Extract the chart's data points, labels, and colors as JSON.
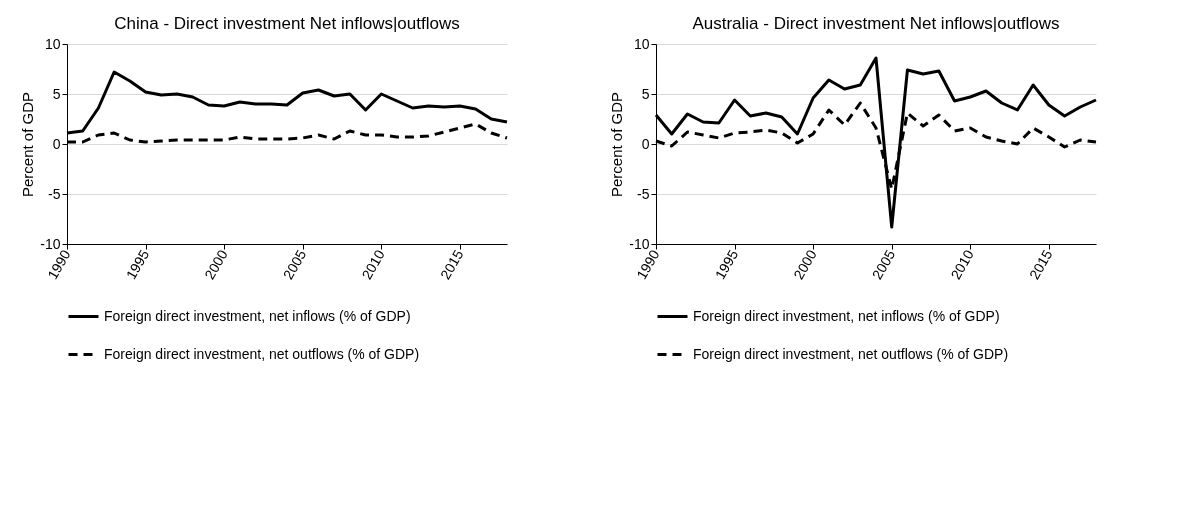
{
  "chart_data": [
    {
      "type": "line",
      "title": "China - Direct investment Net inflows|outflows",
      "ylabel": "Percent of GDP",
      "x": [
        1990,
        1991,
        1992,
        1993,
        1994,
        1995,
        1996,
        1997,
        1998,
        1999,
        2000,
        2001,
        2002,
        2003,
        2004,
        2005,
        2006,
        2007,
        2008,
        2009,
        2010,
        2011,
        2012,
        2013,
        2014,
        2015,
        2016,
        2017,
        2018
      ],
      "series": [
        {
          "name": "Foreign direct investment, net inflows (% of GDP)",
          "color": "#000000",
          "line_style": "solid",
          "values": [
            1.1,
            1.3,
            3.6,
            7.2,
            6.3,
            5.2,
            4.9,
            5.0,
            4.7,
            3.9,
            3.8,
            4.2,
            4.0,
            4.0,
            3.9,
            5.1,
            5.4,
            4.8,
            5.0,
            3.4,
            5.0,
            4.3,
            3.6,
            3.8,
            3.7,
            3.8,
            3.5,
            2.5,
            2.2
          ]
        },
        {
          "name": "Foreign direct investment, net outflows (% of GDP)",
          "color": "#000000",
          "line_style": "dashed",
          "values": [
            0.2,
            0.2,
            0.9,
            1.1,
            0.4,
            0.2,
            0.3,
            0.4,
            0.4,
            0.4,
            0.4,
            0.7,
            0.5,
            0.5,
            0.5,
            0.6,
            0.9,
            0.5,
            1.3,
            0.9,
            0.9,
            0.7,
            0.7,
            0.8,
            1.2,
            1.6,
            2.0,
            1.1,
            0.6
          ]
        }
      ],
      "xlim": [
        1990,
        2018
      ],
      "xticks": [
        1990,
        1995,
        2000,
        2005,
        2010,
        2015
      ],
      "ylim": [
        -10,
        10
      ],
      "yticks": [
        -10,
        -5,
        0,
        5,
        10
      ],
      "grid": "y",
      "legend": "bottom"
    },
    {
      "type": "line",
      "title": "Australia - Direct investment Net inflows|outflows",
      "ylabel": "Percent of GDP",
      "x": [
        1990,
        1991,
        1992,
        1993,
        1994,
        1995,
        1996,
        1997,
        1998,
        1999,
        2000,
        2001,
        2002,
        2003,
        2004,
        2005,
        2006,
        2007,
        2008,
        2009,
        2010,
        2011,
        2012,
        2013,
        2014,
        2015,
        2016,
        2017,
        2018
      ],
      "series": [
        {
          "name": "Foreign direct investment, net inflows (% of GDP)",
          "color": "#000000",
          "line_style": "solid",
          "values": [
            2.9,
            1.0,
            3.0,
            2.2,
            2.1,
            4.4,
            2.8,
            3.1,
            2.7,
            1.0,
            4.6,
            6.4,
            5.5,
            5.9,
            8.6,
            -8.3,
            7.4,
            7.0,
            7.3,
            4.3,
            4.7,
            5.3,
            4.1,
            3.4,
            5.9,
            3.9,
            2.8,
            3.7,
            4.4
          ]
        },
        {
          "name": "Foreign direct investment, net outflows (% of GDP)",
          "color": "#000000",
          "line_style": "dashed",
          "values": [
            0.3,
            -0.2,
            1.2,
            0.9,
            0.6,
            1.1,
            1.2,
            1.4,
            1.1,
            0.1,
            1.0,
            3.4,
            1.9,
            4.1,
            1.6,
            -4.5,
            3.1,
            1.8,
            2.9,
            1.3,
            1.6,
            0.7,
            0.3,
            0.0,
            1.6,
            0.7,
            -0.3,
            0.4,
            0.2
          ]
        }
      ],
      "xlim": [
        1990,
        2018
      ],
      "xticks": [
        1990,
        1995,
        2000,
        2005,
        2010,
        2015
      ],
      "ylim": [
        -10,
        10
      ],
      "yticks": [
        -10,
        -5,
        0,
        5,
        10
      ],
      "grid": "y",
      "legend": "bottom"
    }
  ]
}
